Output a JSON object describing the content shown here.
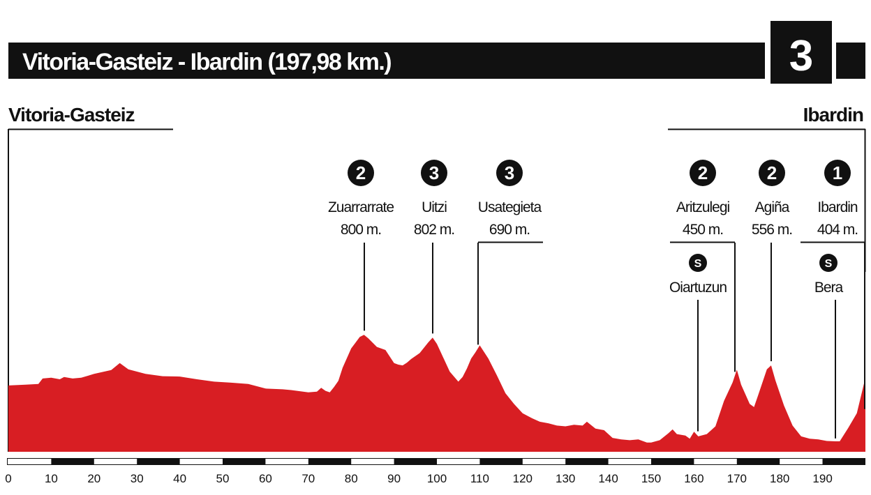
{
  "header": {
    "title": "Vitoria-Gasteiz - Ibardin (197,98 km.)",
    "stage_number": "3"
  },
  "start_label": "Vitoria-Gasteiz",
  "finish_label": "Ibardin",
  "colors": {
    "profile": "#d81e23",
    "ink": "#111111",
    "paper": "#ffffff"
  },
  "chart_data": {
    "type": "area",
    "x_unit": "km",
    "xlim": [
      0,
      200
    ],
    "x_ticks": [
      0,
      10,
      20,
      30,
      40,
      50,
      60,
      70,
      80,
      90,
      100,
      110,
      120,
      130,
      140,
      150,
      160,
      170,
      180,
      190
    ],
    "ylim": [
      0,
      850
    ],
    "profile": {
      "x": [
        0,
        4,
        7,
        8,
        10,
        12,
        13,
        15,
        17,
        20,
        24,
        26,
        28,
        32,
        36,
        40,
        44,
        48,
        52,
        56,
        60,
        64,
        66,
        70,
        72,
        73,
        74,
        75,
        76,
        77,
        78,
        80,
        82,
        83,
        84,
        86,
        88,
        90,
        91,
        92,
        93,
        94,
        96,
        98,
        99,
        100,
        101,
        103,
        105,
        106,
        107,
        108,
        109,
        110,
        112,
        114,
        116,
        118,
        120,
        122,
        124,
        126,
        128,
        130,
        132,
        134,
        135,
        137,
        139,
        141,
        143,
        145,
        147,
        149,
        150,
        152,
        154,
        155,
        156,
        158,
        159,
        160,
        161,
        163,
        165,
        167,
        169,
        170,
        171,
        173,
        174,
        175,
        177,
        178,
        179,
        181,
        183,
        185,
        187,
        189,
        191,
        193,
        194,
        196,
        198,
        200
      ],
      "y": [
        430,
        435,
        440,
        475,
        480,
        470,
        485,
        475,
        480,
        505,
        530,
        575,
        535,
        505,
        490,
        488,
        470,
        455,
        448,
        440,
        410,
        405,
        400,
        385,
        390,
        415,
        395,
        385,
        420,
        460,
        545,
        670,
        745,
        758,
        735,
        680,
        660,
        575,
        565,
        560,
        578,
        602,
        640,
        710,
        740,
        700,
        640,
        520,
        455,
        485,
        540,
        605,
        645,
        690,
        605,
        495,
        380,
        310,
        250,
        220,
        195,
        185,
        170,
        165,
        175,
        170,
        195,
        150,
        140,
        90,
        80,
        75,
        80,
        60,
        60,
        75,
        120,
        145,
        115,
        105,
        85,
        130,
        100,
        115,
        165,
        330,
        450,
        532,
        435,
        310,
        290,
        370,
        535,
        560,
        462,
        300,
        170,
        100,
        85,
        80,
        70,
        68,
        68,
        155,
        250,
        480
      ]
    },
    "climbs": [
      {
        "category": "2",
        "name": "Zuarrarrate",
        "altitude": "800 m.",
        "km": 83
      },
      {
        "category": "3",
        "name": "Uitzi",
        "altitude": "802 m.",
        "km": 99
      },
      {
        "category": "3",
        "name": "Usategieta",
        "altitude": "690 m.",
        "km": 109.5
      },
      {
        "category": "2",
        "name": "Aritzulegi",
        "altitude": "450 m.",
        "km": 169.5
      },
      {
        "category": "2",
        "name": "Agiña",
        "altitude": "556 m.",
        "km": 178
      },
      {
        "category": "1",
        "name": "Ibardin",
        "altitude": "404 m.",
        "km": 198
      }
    ],
    "sprints": [
      {
        "badge": "S",
        "name": "Oiartuzun",
        "km": 160.5
      },
      {
        "badge": "S",
        "name": "Bera",
        "km": 192.5
      }
    ]
  }
}
